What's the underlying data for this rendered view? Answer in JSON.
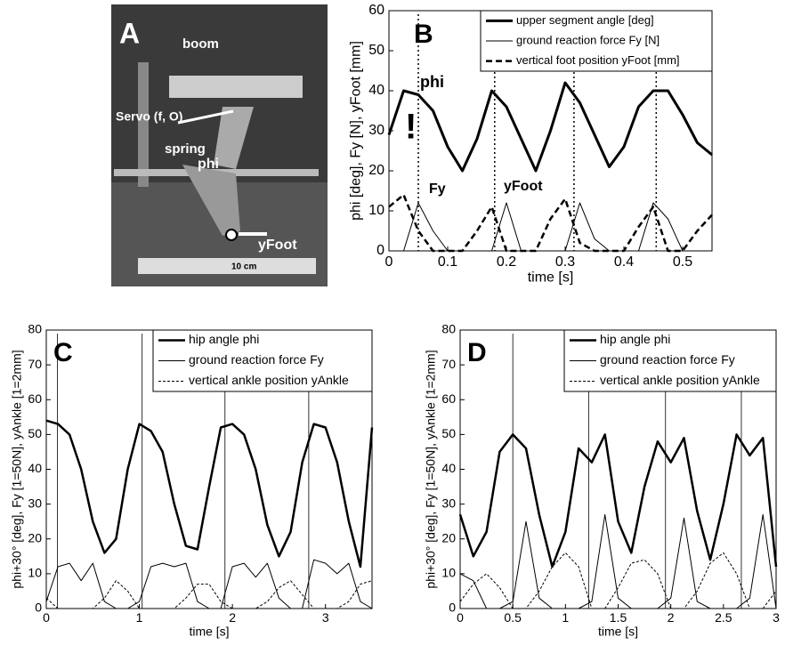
{
  "photo": {
    "label": "A",
    "labels": [
      "boom",
      "Servo (f, O)",
      "spring",
      "phi",
      "yFoot",
      "10 cm"
    ]
  },
  "chart_data": [
    {
      "type": "line",
      "label": "B",
      "xlabel": "time [s]",
      "ylabel": "phi [deg], Fy [N], yFoot [mm]",
      "xlim": [
        0,
        0.55
      ],
      "ylim": [
        0,
        60
      ],
      "xticks": [
        0,
        0.1,
        0.2,
        0.3,
        0.4,
        0.5
      ],
      "yticks": [
        0,
        10,
        20,
        30,
        40,
        50,
        60
      ],
      "annotations": [
        "phi",
        "!",
        "Fy",
        "yFoot"
      ],
      "vlines": [
        0.05,
        0.18,
        0.315,
        0.455
      ],
      "x": [
        0,
        0.025,
        0.05,
        0.075,
        0.1,
        0.125,
        0.15,
        0.175,
        0.2,
        0.225,
        0.25,
        0.275,
        0.3,
        0.325,
        0.35,
        0.375,
        0.4,
        0.425,
        0.45,
        0.475,
        0.5,
        0.525,
        0.55
      ],
      "series": [
        {
          "name": "upper segment angle [deg]",
          "color": "#000000",
          "width": 3,
          "dash": "none",
          "values": [
            29,
            40,
            39,
            35,
            26,
            20,
            28,
            40,
            36,
            28,
            20,
            30,
            42,
            37,
            29,
            21,
            26,
            36,
            40,
            40,
            34,
            27,
            24
          ]
        },
        {
          "name": "ground reaction force Fy [N]",
          "color": "#000000",
          "width": 1,
          "dash": "none",
          "values": [
            0,
            0,
            12,
            5,
            0,
            0,
            0,
            0,
            12,
            0,
            0,
            0,
            0,
            12,
            3,
            0,
            0,
            0,
            12,
            8,
            0,
            0,
            0
          ]
        },
        {
          "name": "vertical foot position yFoot [mm]",
          "color": "#000000",
          "width": 2.5,
          "dash": "7 4",
          "values": [
            11,
            14,
            5,
            0,
            0,
            0,
            5,
            11,
            0,
            0,
            0,
            8,
            13,
            2,
            0,
            0,
            0,
            6,
            11,
            0,
            0,
            5,
            9
          ]
        }
      ]
    },
    {
      "type": "line",
      "label": "C",
      "xlabel": "time [s]",
      "ylabel": "phi+30° [deg], Fy [1=50N], yAnkle [1=2mm]",
      "xlim": [
        0,
        3.5
      ],
      "ylim": [
        0,
        80
      ],
      "xticks": [
        0,
        1,
        2,
        3
      ],
      "yticks": [
        0,
        10,
        20,
        30,
        40,
        50,
        60,
        70,
        80
      ],
      "vlines": [
        0.12,
        1.03,
        1.92,
        2.82
      ],
      "x": [
        0,
        0.125,
        0.25,
        0.375,
        0.5,
        0.625,
        0.75,
        0.875,
        1,
        1.125,
        1.25,
        1.375,
        1.5,
        1.625,
        1.75,
        1.875,
        2,
        2.125,
        2.25,
        2.375,
        2.5,
        2.625,
        2.75,
        2.875,
        3,
        3.125,
        3.25,
        3.375,
        3.5
      ],
      "series": [
        {
          "name": "hip angle phi",
          "color": "#000000",
          "width": 2.5,
          "dash": "none",
          "values": [
            54,
            53,
            50,
            40,
            25,
            16,
            20,
            40,
            53,
            51,
            45,
            30,
            18,
            17,
            35,
            52,
            53,
            50,
            40,
            24,
            15,
            22,
            42,
            53,
            52,
            42,
            25,
            12,
            52
          ]
        },
        {
          "name": "ground reaction force Fy",
          "color": "#000000",
          "width": 1,
          "dash": "none",
          "values": [
            2,
            12,
            13,
            8,
            13,
            2,
            0,
            0,
            2,
            12,
            13,
            12,
            13,
            2,
            0,
            0,
            12,
            13,
            9,
            13,
            3,
            0,
            0,
            14,
            13,
            10,
            13,
            2,
            0
          ]
        },
        {
          "name": "vertical ankle position yAnkle",
          "color": "#000000",
          "width": 1,
          "dash": "3 2",
          "values": [
            3,
            0,
            0,
            0,
            0,
            3,
            8,
            5,
            0,
            0,
            0,
            0,
            3,
            7,
            7,
            2,
            0,
            0,
            0,
            2,
            6,
            8,
            4,
            0,
            0,
            0,
            2,
            7,
            8
          ]
        }
      ]
    },
    {
      "type": "line",
      "label": "D",
      "xlabel": "time [s]",
      "ylabel": "phi+30° [deg], Fy [1=50N], yAnkle [1=2mm]",
      "xlim": [
        0,
        3
      ],
      "ylim": [
        0,
        80
      ],
      "xticks": [
        0,
        0.5,
        1,
        1.5,
        2,
        2.5,
        3
      ],
      "yticks": [
        0,
        10,
        20,
        30,
        40,
        50,
        60,
        70,
        80
      ],
      "vlines": [
        0.5,
        1.22,
        1.95,
        2.67
      ],
      "x": [
        0,
        0.125,
        0.25,
        0.375,
        0.5,
        0.625,
        0.75,
        0.875,
        1,
        1.125,
        1.25,
        1.375,
        1.5,
        1.625,
        1.75,
        1.875,
        2,
        2.125,
        2.25,
        2.375,
        2.5,
        2.625,
        2.75,
        2.875,
        3
      ],
      "series": [
        {
          "name": "hip angle phi",
          "color": "#000000",
          "width": 2.5,
          "dash": "none",
          "values": [
            27,
            15,
            22,
            45,
            50,
            46,
            27,
            12,
            22,
            46,
            42,
            50,
            25,
            16,
            35,
            48,
            42,
            49,
            28,
            14,
            30,
            50,
            44,
            49,
            12
          ]
        },
        {
          "name": "ground reaction force Fy",
          "color": "#000000",
          "width": 1,
          "dash": "none",
          "values": [
            10,
            8,
            0,
            0,
            2,
            25,
            3,
            0,
            0,
            0,
            2,
            27,
            3,
            0,
            0,
            0,
            3,
            26,
            2,
            0,
            0,
            0,
            3,
            27,
            0
          ]
        },
        {
          "name": "vertical ankle position yAnkle",
          "color": "#000000",
          "width": 1,
          "dash": "3 2",
          "values": [
            2,
            7,
            10,
            6,
            0,
            0,
            5,
            12,
            16,
            12,
            0,
            0,
            6,
            13,
            14,
            10,
            0,
            0,
            5,
            13,
            16,
            10,
            0,
            0,
            5
          ]
        }
      ]
    }
  ]
}
